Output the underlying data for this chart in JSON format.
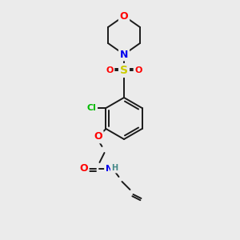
{
  "background_color": "#ebebeb",
  "bond_color": "#1a1a1a",
  "bond_width": 1.4,
  "atom_colors": {
    "O": "#ff0000",
    "N": "#0000ee",
    "S": "#cccc00",
    "Cl": "#00bb00",
    "C": "#1a1a1a",
    "H": "#448888"
  },
  "figsize": [
    3.0,
    3.0
  ],
  "dpi": 100,
  "scale": 1.0
}
